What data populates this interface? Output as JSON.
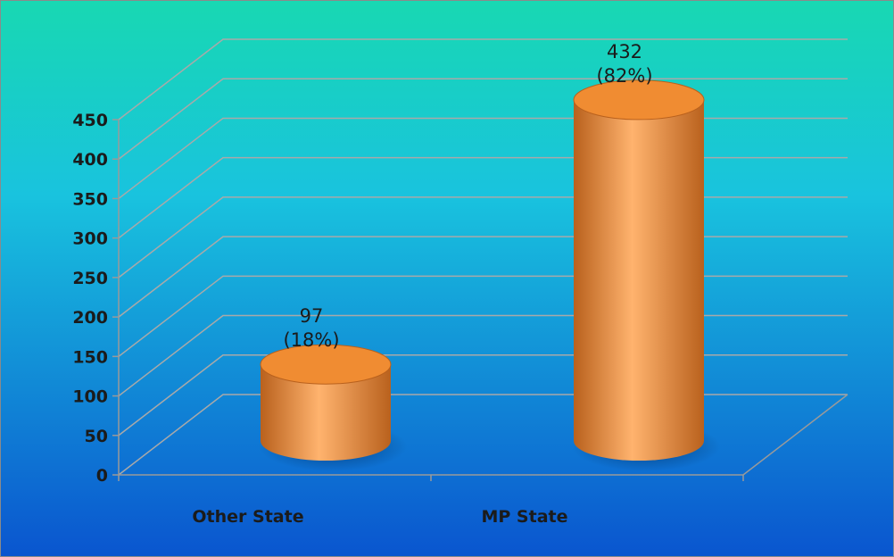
{
  "chart_data": {
    "type": "bar",
    "categories": [
      "Other State",
      "MP State"
    ],
    "values": [
      97,
      432
    ],
    "data_labels": [
      {
        "value": "97",
        "percent": "(18%)"
      },
      {
        "value": "432",
        "percent": "(82%)"
      }
    ],
    "ylim": [
      0,
      450
    ],
    "yticks": [
      0,
      50,
      100,
      150,
      200,
      250,
      300,
      350,
      400,
      450
    ],
    "grid": true,
    "bar_shape": "cylinder",
    "colors": {
      "background_top": "#18d8b2",
      "background_mid": "#19c3de",
      "background_bottom": "#0a55cf",
      "bar": "#f08c32",
      "bar_light": "#ffb36e",
      "bar_dark": "#b9611d"
    }
  }
}
